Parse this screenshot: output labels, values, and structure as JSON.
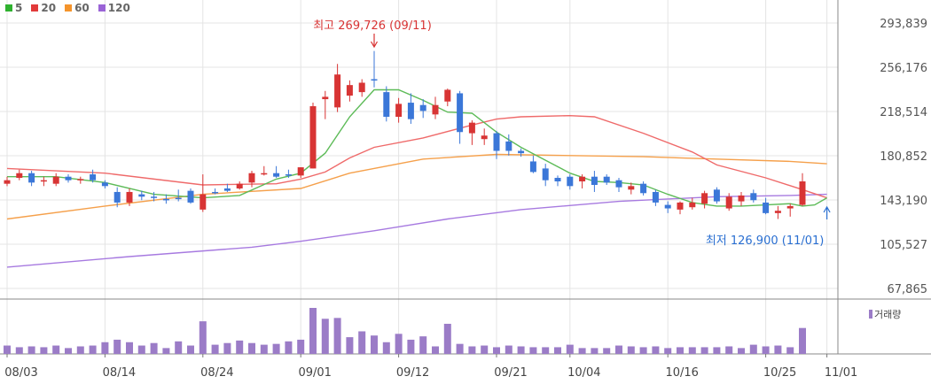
{
  "legend": [
    {
      "label": "5",
      "color": "#2fb12f"
    },
    {
      "label": "20",
      "color": "#e23a3a"
    },
    {
      "label": "60",
      "color": "#f5942b"
    },
    {
      "label": "120",
      "color": "#9a63d6"
    }
  ],
  "colors": {
    "up": "#d83434",
    "down": "#3b77d8",
    "volume": "#9b7cc7",
    "grid": "#e4e4e4"
  },
  "chart_data": {
    "type": "candlestick",
    "y_ticks": [
      "293,839",
      "256,176",
      "218,514",
      "180,852",
      "143,190",
      "105,527",
      "67,865"
    ],
    "y_tick_values": [
      293839,
      256176,
      218514,
      180852,
      143190,
      105527,
      67865
    ],
    "ylim": [
      67865,
      293839
    ],
    "x_tick_labels": [
      "08/03",
      "08/14",
      "08/24",
      "09/01",
      "09/12",
      "09/21",
      "10/04",
      "10/16",
      "10/25",
      "11/01"
    ],
    "x_tick_index": [
      0,
      8,
      16,
      24,
      32,
      40,
      46,
      54,
      62,
      67
    ],
    "max_annotation": {
      "text": "최고 269,726 (09/11)",
      "index": 30,
      "value": 269726
    },
    "min_annotation": {
      "text": "최저 126,900 (11/01)",
      "index": 67,
      "value": 126900
    },
    "candles": [
      [
        157000,
        163000,
        155000,
        160000
      ],
      [
        162000,
        169000,
        160000,
        166000
      ],
      [
        166000,
        168000,
        155000,
        158000
      ],
      [
        159000,
        163000,
        155000,
        160000
      ],
      [
        157000,
        166000,
        155000,
        163000
      ],
      [
        163000,
        165000,
        158000,
        160000
      ],
      [
        160000,
        163000,
        157000,
        161000
      ],
      [
        165000,
        169000,
        158000,
        160000
      ],
      [
        158000,
        160000,
        153000,
        155000
      ],
      [
        150000,
        154000,
        137000,
        141000
      ],
      [
        141000,
        153000,
        138000,
        150000
      ],
      [
        148000,
        151000,
        143000,
        146000
      ],
      [
        146000,
        150000,
        142000,
        145000
      ],
      [
        144000,
        148000,
        140000,
        143000
      ],
      [
        145000,
        152000,
        142000,
        144000
      ],
      [
        151000,
        153000,
        140000,
        141000
      ],
      [
        135000,
        165000,
        133000,
        148000
      ],
      [
        150000,
        153000,
        148000,
        149000
      ],
      [
        153000,
        157000,
        150000,
        151000
      ],
      [
        153000,
        159000,
        152000,
        157000
      ],
      [
        158000,
        168000,
        154000,
        166000
      ],
      [
        165000,
        172000,
        164000,
        166000
      ],
      [
        166000,
        172000,
        162000,
        163000
      ],
      [
        165000,
        169000,
        162000,
        164000
      ],
      [
        164000,
        171000,
        162000,
        171000
      ],
      [
        170000,
        226000,
        170000,
        223000
      ],
      [
        229000,
        236000,
        212000,
        231000
      ],
      [
        222000,
        259000,
        218000,
        250000
      ],
      [
        232000,
        245000,
        227000,
        241000
      ],
      [
        235000,
        246000,
        231000,
        243000
      ],
      [
        246000,
        270000,
        239000,
        245000
      ],
      [
        235000,
        240000,
        210000,
        214000
      ],
      [
        214000,
        230000,
        209000,
        225000
      ],
      [
        226000,
        234000,
        208000,
        212000
      ],
      [
        224000,
        229000,
        213000,
        219000
      ],
      [
        216000,
        231000,
        212000,
        224000
      ],
      [
        227000,
        238000,
        223000,
        237000
      ],
      [
        234000,
        236000,
        191000,
        201000
      ],
      [
        200000,
        211000,
        190000,
        209000
      ],
      [
        195000,
        204000,
        190000,
        198000
      ],
      [
        200000,
        202000,
        178000,
        185000
      ],
      [
        193000,
        199000,
        181000,
        185000
      ],
      [
        185000,
        187000,
        180000,
        183000
      ],
      [
        176000,
        181000,
        166000,
        167000
      ],
      [
        170000,
        174000,
        155000,
        160000
      ],
      [
        162000,
        164000,
        155000,
        159000
      ],
      [
        163000,
        165000,
        152000,
        155000
      ],
      [
        159000,
        165000,
        153000,
        163000
      ],
      [
        163000,
        168000,
        150000,
        156000
      ],
      [
        163000,
        165000,
        156000,
        158000
      ],
      [
        160000,
        162000,
        150000,
        154000
      ],
      [
        152000,
        158000,
        148000,
        155000
      ],
      [
        157000,
        159000,
        147000,
        149000
      ],
      [
        150000,
        152000,
        138000,
        141000
      ],
      [
        139000,
        142000,
        132000,
        136000
      ],
      [
        135000,
        142000,
        131000,
        141000
      ],
      [
        137000,
        145000,
        135000,
        141000
      ],
      [
        140000,
        151000,
        136000,
        149000
      ],
      [
        152000,
        154000,
        140000,
        142000
      ],
      [
        136000,
        149000,
        134000,
        146000
      ],
      [
        142000,
        150000,
        138000,
        147000
      ],
      [
        149000,
        152000,
        141000,
        143000
      ],
      [
        141000,
        145000,
        131000,
        132000
      ],
      [
        132000,
        138000,
        127000,
        134000
      ],
      [
        136000,
        140000,
        129000,
        138000
      ],
      [
        139000,
        166000,
        138000,
        159000
      ]
    ],
    "ma_lines": {
      "5": [
        [
          0,
          163000
        ],
        [
          4,
          163000
        ],
        [
          8,
          158000
        ],
        [
          12,
          148000
        ],
        [
          16,
          145000
        ],
        [
          19,
          147000
        ],
        [
          22,
          161000
        ],
        [
          24,
          166000
        ],
        [
          26,
          183000
        ],
        [
          28,
          214000
        ],
        [
          30,
          237000
        ],
        [
          32,
          237000
        ],
        [
          34,
          228000
        ],
        [
          36,
          218000
        ],
        [
          38,
          217000
        ],
        [
          40,
          201000
        ],
        [
          42,
          188000
        ],
        [
          44,
          177000
        ],
        [
          46,
          166000
        ],
        [
          48,
          159000
        ],
        [
          50,
          158000
        ],
        [
          52,
          156000
        ],
        [
          54,
          148000
        ],
        [
          56,
          141000
        ],
        [
          58,
          138000
        ],
        [
          60,
          138000
        ],
        [
          62,
          139000
        ],
        [
          64,
          140000
        ],
        [
          65,
          138000
        ],
        [
          66,
          139000
        ],
        [
          67,
          145000
        ]
      ],
      "20": [
        [
          0,
          170000
        ],
        [
          8,
          166000
        ],
        [
          16,
          156000
        ],
        [
          22,
          157000
        ],
        [
          24,
          161000
        ],
        [
          26,
          167000
        ],
        [
          28,
          179000
        ],
        [
          30,
          188000
        ],
        [
          34,
          196000
        ],
        [
          38,
          207000
        ],
        [
          40,
          212000
        ],
        [
          42,
          214000
        ],
        [
          46,
          215000
        ],
        [
          48,
          214000
        ],
        [
          52,
          200000
        ],
        [
          56,
          184000
        ],
        [
          58,
          173000
        ],
        [
          62,
          162000
        ],
        [
          65,
          152000
        ],
        [
          67,
          145000
        ]
      ],
      "60": [
        [
          0,
          127000
        ],
        [
          8,
          138000
        ],
        [
          16,
          148000
        ],
        [
          24,
          153000
        ],
        [
          28,
          166000
        ],
        [
          34,
          178000
        ],
        [
          40,
          182000
        ],
        [
          46,
          181000
        ],
        [
          52,
          180000
        ],
        [
          58,
          178000
        ],
        [
          64,
          176000
        ],
        [
          67,
          174000
        ]
      ],
      "120": [
        [
          0,
          86000
        ],
        [
          10,
          95000
        ],
        [
          20,
          103000
        ],
        [
          24,
          108000
        ],
        [
          30,
          117000
        ],
        [
          36,
          127000
        ],
        [
          42,
          135000
        ],
        [
          50,
          142000
        ],
        [
          58,
          146000
        ],
        [
          64,
          147000
        ],
        [
          67,
          148000
        ]
      ]
    },
    "volume_label": "거래량",
    "volume": [
      10,
      8,
      9,
      8,
      10,
      7,
      9,
      10,
      14,
      17,
      14,
      10,
      13,
      7,
      15,
      10,
      39,
      11,
      13,
      16,
      13,
      11,
      12,
      15,
      17,
      55,
      42,
      43,
      20,
      27,
      22,
      14,
      24,
      17,
      21,
      9,
      36,
      12,
      9,
      10,
      8,
      10,
      9,
      8,
      8,
      8,
      11,
      7,
      7,
      7,
      10,
      9,
      8,
      9,
      7,
      8,
      8,
      8,
      8,
      9,
      7,
      11,
      9,
      10,
      8,
      31
    ]
  }
}
